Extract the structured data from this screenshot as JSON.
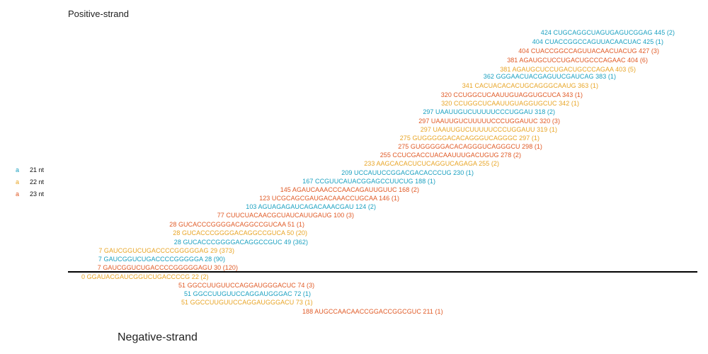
{
  "labels": {
    "positive": "Positive-strand",
    "negative": "Negative-strand"
  },
  "colors": {
    "21": "#1aa0c0",
    "22": "#e8a526",
    "23": "#e05a26"
  },
  "legend": [
    {
      "glyph": "a",
      "len": "21",
      "text": "21 nt"
    },
    {
      "glyph": "a",
      "len": "22",
      "text": "22 nt"
    },
    {
      "glyph": "a",
      "len": "23",
      "text": "23 nt"
    }
  ],
  "positive_reads": [
    {
      "len": "21",
      "text": "424 CUGCAGGCUAGUGAGUCGGAG 445 (2)"
    },
    {
      "len": "21",
      "text": "404 CUACCGGCCAGUUACAACUAC 425 (1)"
    },
    {
      "len": "23",
      "text": "404 CUACCGGCCAGUUACAACUACUG 427 (3)"
    },
    {
      "len": "23",
      "text": "381 AGAUGCUCCUGACUGCCCAGAAC 404 (6)"
    },
    {
      "len": "22",
      "text": "381 AGAUGCUCCUGACUGCCCAGAA 403 (5)"
    },
    {
      "len": "21",
      "text": "362 GGGAACUACGAGUUCGAUCAG 383 (1)"
    },
    {
      "len": "22",
      "text": "341 CACUACACACUGCAGGGCAAUG 363 (1)"
    },
    {
      "len": "23",
      "text": "320 CCUGGCUCAAUUGUAGGUGCUCA 343 (1)"
    },
    {
      "len": "22",
      "text": "320 CCUGGCUCAAUUGUAGGUGCUC 342 (1)"
    },
    {
      "len": "21",
      "text": "297 UAAUUGUCUUUUUCCCUGGAU 318 (2)"
    },
    {
      "len": "23",
      "text": "297 UAAUUGUCUUUUUCCCUGGAUUC 320 (3)"
    },
    {
      "len": "22",
      "text": "297 UAAUUGUCUUUUUCCCUGGAUU 319 (1)"
    },
    {
      "len": "22",
      "text": "275 GUGGGGGACACAGGGUCAGGGC 297 (1)"
    },
    {
      "len": "23",
      "text": "275 GUGGGGGACACAGGGUCAGGGCU 298 (1)"
    },
    {
      "len": "23",
      "text": "255 CCUCGACCUACAAUUUGACUGUG 278 (2)"
    },
    {
      "len": "22",
      "text": "233 AAGCACACUCUCAGGUCAGAGA 255 (2)"
    },
    {
      "len": "21",
      "text": "209 UCCAUUCCGGACGACACCCUG 230 (1)"
    },
    {
      "len": "21",
      "text": "167 CCGUUCAUACGGAGCCUUCUG 188 (1)"
    },
    {
      "len": "23",
      "text": "145 AGAUCAAACCCAACAGAUUGUUC 168 (2)"
    },
    {
      "len": "23",
      "text": "123 UCGCAGCGAUGACAAACCUGCAA 146 (1)"
    },
    {
      "len": "21",
      "text": "103 AGUAGAGAUCAGACAAACGAU 124 (2)"
    },
    {
      "len": "23",
      "text": "77 CUUCUACAACGCUAUCAUUGAUG 100 (3)"
    },
    {
      "len": "23",
      "text": "28 GUCACCCGGGGACAGGCCGUCAA 51 (1)"
    },
    {
      "len": "22",
      "text": "28 GUCACCCGGGGACAGGCCGUCA 50 (20)"
    },
    {
      "len": "21",
      "text": "28 GUCACCCGGGGACAGGCCGUC 49 (362)"
    },
    {
      "len": "22",
      "text": "7 GAUCGGUCUGACCCCGGGGGAG 29 (373)"
    },
    {
      "len": "21",
      "text": "7 GAUCGGUCUGACCCCGGGGGA 28 (90)"
    },
    {
      "len": "23",
      "text": "7 GAUCGGUCUGACCCCGGGGGAGU 30 (120)"
    }
  ],
  "negative_reads": [
    {
      "len": "22",
      "text": "0 GGAUACGAUCGGUCUGACCCCG 22 (2)"
    },
    {
      "len": "23",
      "text": "51 GGCCUUGUUCCAGGAUGGGACUC 74 (3)"
    },
    {
      "len": "21",
      "text": "51 GGCCUUGUUCCAGGAUGGGAC 72 (1)"
    },
    {
      "len": "22",
      "text": "51 GGCCUUGUUCCAGGAUGGGACU 73 (1)"
    },
    {
      "len": "23",
      "text": "188 AUGCCAACAACCGGACCGGCGUC 211 (1)"
    }
  ]
}
